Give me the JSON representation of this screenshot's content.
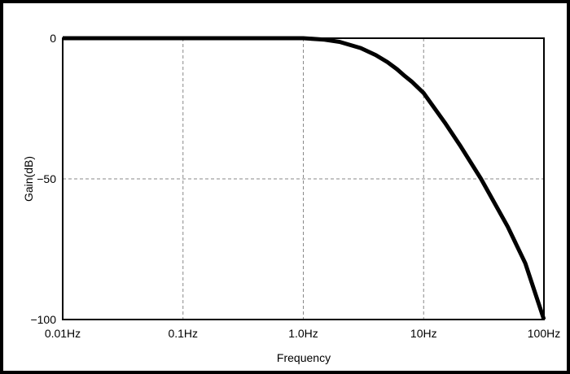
{
  "chart_data": {
    "type": "line",
    "title": "",
    "xlabel": "Frequency",
    "ylabel": "Gain(dB)",
    "x_scale": "log",
    "xlim": [
      0.01,
      100
    ],
    "ylim": [
      -100,
      0
    ],
    "grid": true,
    "xticks": [
      {
        "value": 0.01,
        "label": "0.01Hz"
      },
      {
        "value": 0.1,
        "label": "0.1Hz"
      },
      {
        "value": 1,
        "label": "1.0Hz"
      },
      {
        "value": 10,
        "label": "10Hz"
      },
      {
        "value": 100,
        "label": "100Hz"
      }
    ],
    "yticks": [
      {
        "value": 0,
        "label": "0"
      },
      {
        "value": -50,
        "label": "−50"
      },
      {
        "value": -100,
        "label": "−100"
      }
    ],
    "series": [
      {
        "color": "#000000",
        "x": [
          0.01,
          0.03,
          0.1,
          0.3,
          1.0,
          1.5,
          2.0,
          3.0,
          4.0,
          5.0,
          6.0,
          7.0,
          8.0,
          10,
          15,
          20,
          30,
          50,
          70,
          100
        ],
        "y": [
          0,
          0,
          0,
          0,
          0,
          -0.5,
          -1.3,
          -3.5,
          -6,
          -8.5,
          -11,
          -13.5,
          -15.5,
          -19.5,
          -30,
          -38,
          -50,
          -67,
          -80,
          -100
        ]
      }
    ]
  }
}
